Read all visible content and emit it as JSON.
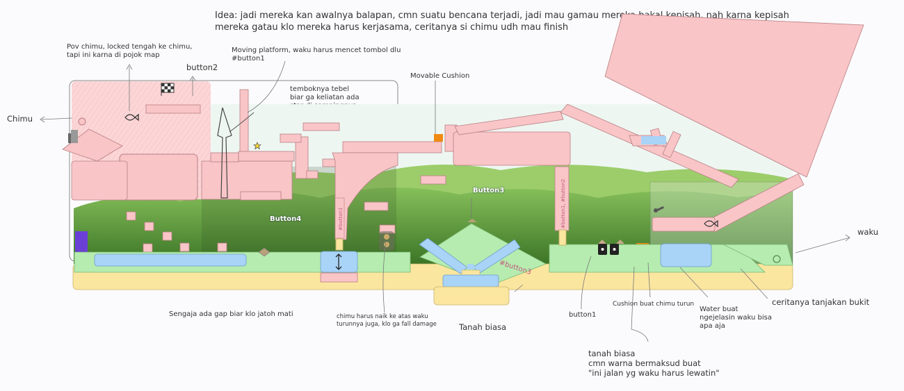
{
  "colors": {
    "pink": "#f9c5c7",
    "pink_stroke": "#b87f82",
    "green_ground": "#b6ecb0",
    "yellow_ground": "#fbe6a0",
    "water": "#a9d3f7",
    "cushion": "#f08a12",
    "hill_dark": "#3f7a2a",
    "hill_light": "#7fb84d",
    "sky": "#e7f3f0",
    "purple": "#6b3fd6",
    "button_pink": "#c05a7c"
  },
  "notes": {
    "idea": "Idea: jadi mereka kan awalnya balapan, cmn suatu bencana terjadi, jadi mau gamau mereka bakal kepisah, nah karna kepisah\nmereka gatau klo mereka harus kerjasama, ceritanya si chimu udh mau finish",
    "pov": "Pov chimu, locked tengah ke chimu,\ntapi ini karna di pojok map",
    "button2": "button2",
    "moving_platform": "Moving platform, waku harus mencet tombol dlu\n#button1",
    "tembok": "temboknya tebel\nbiar ga keliatan ada\nstar di sampingnya",
    "movable_cushion": "Movable Cushion",
    "chimu": "Chimu",
    "waku": "waku",
    "gap": "Sengaja ada gap biar klo jatoh mati",
    "naik": "chimu harus naik ke atas waku\nturunnya juga, klo ga fall damage",
    "tanah_biasa_1": "Tanah biasa",
    "button1": "button1",
    "cushion_turun": "Cushion buat chimu turun",
    "water": "Water buat\nngejelasin waku bisa\napa aja",
    "tanjakan": "ceritanya tanjakan bukit",
    "tanah_biasa_2": "tanah biasa\ncmn warna bermaksud buat\n\"ini jalan yg waku harus lewatin\""
  },
  "in_map_labels": {
    "button3": "Button3",
    "button4": "Button4",
    "button3_tag": "#button3",
    "button1_tag": "#button1",
    "button1_button2_tag": "#button1, #button2"
  },
  "icons": [
    "fish-icon",
    "star-icon",
    "checkered-flag-icon",
    "up-down-arrow-icon",
    "eyes-icon",
    "traffic-light-icon"
  ]
}
